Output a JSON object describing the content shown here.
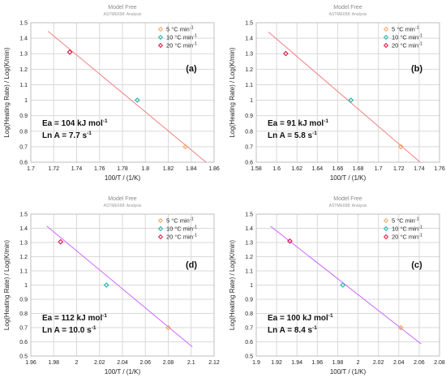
{
  "chart_data": [
    {
      "type": "scatter",
      "title": "Model Free",
      "subtitle": "ASTME698: Analysis",
      "panel_label": "(a)",
      "xlabel": "100/T / (1/K)",
      "ylabel": "Log(Heating Rate) / Log(K/min)",
      "xlim": [
        1.7,
        1.86
      ],
      "ylim": [
        0.6,
        1.5
      ],
      "xticks": [
        1.7,
        1.72,
        1.74,
        1.76,
        1.78,
        1.8,
        1.82,
        1.84,
        1.86
      ],
      "yticks": [
        0.6,
        0.7,
        0.8,
        0.9,
        1,
        1.1,
        1.2,
        1.3,
        1.4,
        1.5
      ],
      "grid": true,
      "legend_position": "top-right",
      "fit_line": {
        "x": [
          1.715,
          1.853
        ],
        "y": [
          1.445,
          0.6
        ],
        "color": "#f08080"
      },
      "series": [
        {
          "name": "5 °C min",
          "unit_sup": "-1",
          "color": "#f4a460",
          "points": [
            [
              1.835,
              0.7
            ]
          ]
        },
        {
          "name": "10 °C min",
          "unit_sup": "-1",
          "color": "#20b2aa",
          "points": [
            [
              1.793,
              1.0
            ]
          ]
        },
        {
          "name": "20 °C min",
          "unit_sup": "-1",
          "color": "#dc143c",
          "points": [
            [
              1.734,
              1.31
            ]
          ]
        }
      ],
      "annotation": [
        {
          "main": "Ea = 104 kJ mol",
          "sup": "-1"
        },
        {
          "main": "Ln A = 7.7 s",
          "sup": "-1"
        }
      ]
    },
    {
      "type": "scatter",
      "title": "Model Free",
      "subtitle": "ASTME698: Analysis",
      "panel_label": "(b)",
      "xlabel": "100/T / (1/K)",
      "ylabel": "Log(Heating Rate) / Log(K/min)",
      "xlim": [
        1.58,
        1.76
      ],
      "ylim": [
        0.6,
        1.5
      ],
      "xticks": [
        1.58,
        1.6,
        1.62,
        1.64,
        1.66,
        1.68,
        1.7,
        1.72,
        1.74,
        1.76
      ],
      "yticks": [
        0.6,
        0.7,
        0.8,
        0.9,
        1,
        1.1,
        1.2,
        1.3,
        1.4,
        1.5
      ],
      "grid": true,
      "legend_position": "top-right",
      "fit_line": {
        "x": [
          1.592,
          1.741
        ],
        "y": [
          1.44,
          0.6
        ],
        "color": "#f08080"
      },
      "series": [
        {
          "name": "5 °C min",
          "unit_sup": "-1",
          "color": "#f4a460",
          "points": [
            [
              1.722,
              0.7
            ]
          ]
        },
        {
          "name": "10 °C min",
          "unit_sup": "-1",
          "color": "#20b2aa",
          "points": [
            [
              1.673,
              1.0
            ]
          ]
        },
        {
          "name": "20 °C min",
          "unit_sup": "-1",
          "color": "#dc143c",
          "points": [
            [
              1.609,
              1.301
            ]
          ]
        }
      ],
      "annotation": [
        {
          "main": "Ea =  91 kJ mol",
          "sup": "-1"
        },
        {
          "main": "Ln A = 5.8 s",
          "sup": "-1"
        }
      ]
    },
    {
      "type": "scatter",
      "title": "Model Free",
      "subtitle": "ASTME698: Analysis",
      "panel_label": "(d)",
      "xlabel": "100/T / (1/K)",
      "ylabel": "Log(Heating Rate) / Log(K/min)",
      "xlim": [
        1.96,
        2.12
      ],
      "ylim": [
        0.5,
        1.5
      ],
      "xticks": [
        1.96,
        1.98,
        2,
        2.02,
        2.04,
        2.06,
        2.08,
        2.1,
        2.12
      ],
      "yticks": [
        0.5,
        0.6,
        0.7,
        0.8,
        0.9,
        1,
        1.1,
        1.2,
        1.3,
        1.4,
        1.5
      ],
      "grid": true,
      "legend_position": "top-right",
      "fit_line": {
        "x": [
          1.974,
          2.101
        ],
        "y": [
          1.415,
          0.565
        ],
        "color": "#cc66ff"
      },
      "series": [
        {
          "name": "5 °C min",
          "unit_sup": "-1",
          "color": "#f4a460",
          "points": [
            [
              2.08,
              0.7
            ]
          ]
        },
        {
          "name": "10 °C min",
          "unit_sup": "-1",
          "color": "#20b2aa",
          "points": [
            [
              2.026,
              1.0
            ]
          ]
        },
        {
          "name": "20 °C min",
          "unit_sup": "-1",
          "color": "#dc143c",
          "points": [
            [
              1.986,
              1.305
            ]
          ]
        }
      ],
      "annotation": [
        {
          "main": "Ea = 112 kJ mol",
          "sup": "-1"
        },
        {
          "main": "Ln A = 10.0 s",
          "sup": "-1"
        }
      ]
    },
    {
      "type": "scatter",
      "title": "Model Free",
      "subtitle": "ASTME698: Analysis",
      "panel_label": "(c)",
      "xlabel": "100/T / (1/K)",
      "ylabel": "Log(Heating Rate) / Log(K/min)",
      "xlim": [
        1.9,
        2.08
      ],
      "ylim": [
        0.5,
        1.5
      ],
      "xticks": [
        1.9,
        1.92,
        1.94,
        1.96,
        1.98,
        2,
        2.02,
        2.04,
        2.06,
        2.08
      ],
      "yticks": [
        0.5,
        0.6,
        0.7,
        0.8,
        0.9,
        1,
        1.1,
        1.2,
        1.3,
        1.4,
        1.5
      ],
      "grid": true,
      "legend_position": "top-right",
      "fit_line": {
        "x": [
          1.914,
          2.062
        ],
        "y": [
          1.415,
          0.585
        ],
        "color": "#cc66ff"
      },
      "series": [
        {
          "name": "5 °C min",
          "unit_sup": "-1",
          "color": "#f4a460",
          "points": [
            [
              2.042,
              0.7
            ]
          ]
        },
        {
          "name": "10 °C min",
          "unit_sup": "-1",
          "color": "#20b2aa",
          "points": [
            [
              1.985,
              1.0
            ]
          ]
        },
        {
          "name": "20 °C min",
          "unit_sup": "-1",
          "color": "#dc143c",
          "points": [
            [
              1.933,
              1.31
            ]
          ]
        }
      ],
      "annotation": [
        {
          "main": "Ea = 100 kJ mol",
          "sup": "-1"
        },
        {
          "main": "Ln A = 8.4 s",
          "sup": "-1"
        }
      ]
    }
  ]
}
